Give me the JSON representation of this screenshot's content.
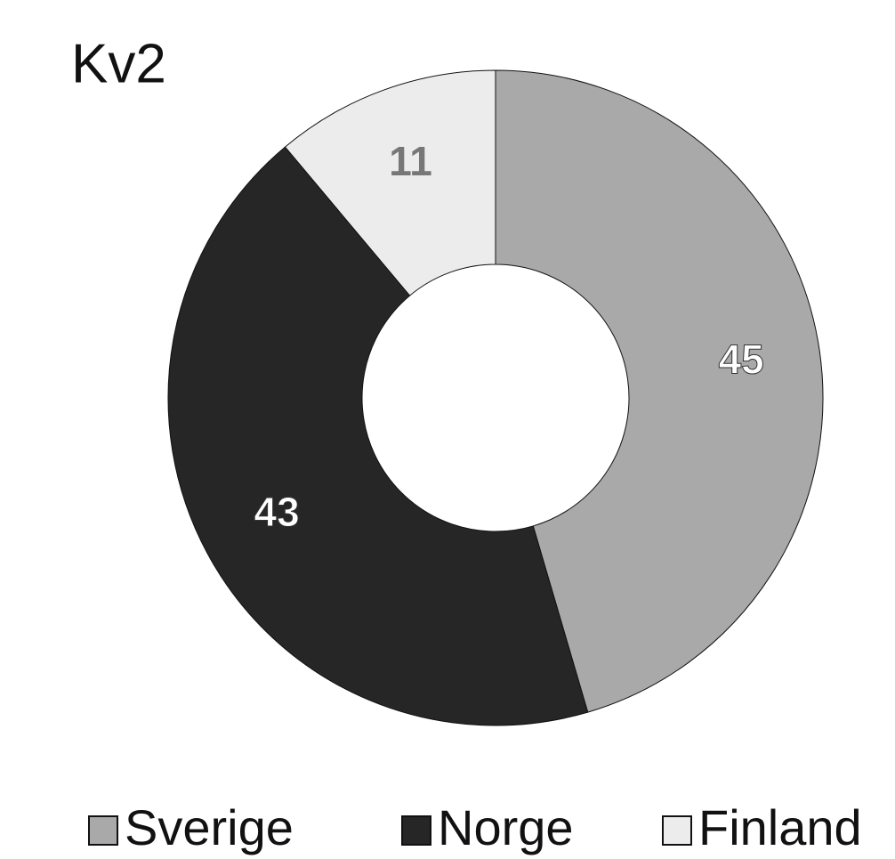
{
  "chart_data": {
    "type": "donut",
    "title": "Kv2",
    "categories": [
      "Sverige",
      "Norge",
      "Finland"
    ],
    "values": [
      45,
      43,
      11
    ],
    "colors": [
      "#a9a9a9",
      "#262626",
      "#ececec"
    ],
    "legend": "bottom"
  }
}
